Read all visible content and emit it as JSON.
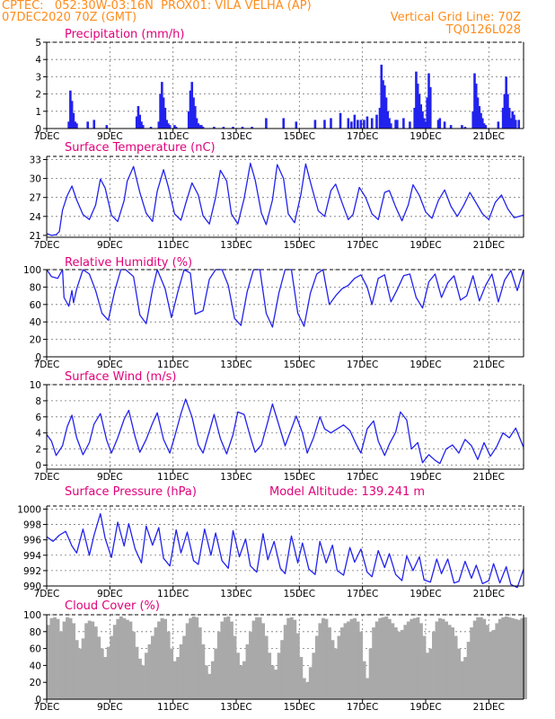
{
  "header": {
    "line1_left": "CPTEC:   052:30W-03:16N  PROX01: VILA VELHA (AP)",
    "line2_left": "07DEC2020 70Z (GMT)",
    "line2_right": "Vertical Grid Line: 70Z",
    "line3_right": "TQ0126L028"
  },
  "colors": {
    "header": "#ff8c1a",
    "title": "#e0007a",
    "series": "#2222ee",
    "cloud": "#a9a9a9"
  },
  "chart_data": [
    {
      "type": "bar",
      "title": "Precipitation (mm/h)",
      "ylim": [
        0,
        5
      ],
      "yticks": [
        0,
        1,
        2,
        3,
        4,
        5
      ],
      "xlim": [
        7,
        22.1
      ],
      "xticks": [
        7,
        9,
        11,
        13,
        15,
        17,
        19,
        21
      ],
      "xtick_labels": [
        "7DEC",
        "9DEC",
        "11DEC",
        "13DEC",
        "15DEC",
        "17DEC",
        "19DEC",
        "21DEC"
      ],
      "x": [
        7.7,
        7.75,
        7.8,
        7.85,
        7.9,
        7.95,
        8.3,
        8.5,
        8.9,
        9.85,
        9.9,
        9.95,
        10.0,
        10.05,
        10.3,
        10.55,
        10.6,
        10.65,
        10.7,
        10.75,
        10.8,
        10.85,
        10.9,
        11.05,
        11.1,
        11.5,
        11.55,
        11.6,
        11.65,
        11.7,
        11.75,
        11.8,
        11.85,
        11.9,
        11.95,
        12.3,
        12.6,
        12.9,
        13.2,
        13.5,
        13.95,
        14.5,
        14.9,
        15.5,
        15.8,
        16.0,
        16.3,
        16.55,
        16.65,
        16.75,
        16.85,
        16.95,
        17.05,
        17.15,
        17.3,
        17.45,
        17.55,
        17.6,
        17.65,
        17.7,
        17.75,
        17.8,
        17.85,
        17.9,
        18.05,
        18.1,
        18.3,
        18.5,
        18.65,
        18.7,
        18.75,
        18.8,
        18.85,
        18.9,
        18.95,
        19.0,
        19.05,
        19.1,
        19.15,
        19.4,
        19.45,
        19.6,
        19.8,
        20.15,
        20.25,
        20.5,
        20.55,
        20.6,
        20.65,
        20.7,
        20.75,
        20.8,
        20.85,
        20.9,
        21.3,
        21.45,
        21.5,
        21.55,
        21.6,
        21.65,
        21.7,
        21.75,
        21.8,
        21.85,
        21.95
      ],
      "values": [
        0.4,
        2.2,
        1.6,
        0.9,
        0.4,
        0.3,
        0.4,
        0.5,
        0.2,
        0.7,
        1.3,
        0.8,
        0.4,
        0.2,
        0.1,
        0.4,
        2.0,
        2.7,
        1.8,
        1.2,
        0.5,
        0.3,
        0.2,
        0.2,
        0.1,
        1.0,
        2.2,
        2.7,
        1.8,
        1.3,
        0.6,
        0.3,
        0.2,
        0.2,
        0.1,
        0.1,
        0.1,
        0.1,
        0.1,
        0.1,
        0.6,
        0.6,
        0.4,
        0.5,
        0.5,
        0.6,
        0.9,
        0.6,
        0.4,
        0.8,
        0.5,
        0.5,
        0.5,
        0.7,
        0.6,
        0.8,
        1.2,
        3.7,
        2.8,
        2.5,
        1.8,
        1.0,
        0.6,
        0.3,
        0.5,
        0.5,
        0.6,
        0.4,
        1.2,
        3.3,
        2.6,
        2.0,
        1.4,
        1.0,
        0.6,
        0.4,
        1.8,
        3.2,
        2.4,
        0.5,
        0.6,
        0.4,
        0.2,
        0.2,
        0.1,
        1.0,
        3.2,
        2.6,
        1.8,
        1.3,
        0.9,
        0.6,
        0.3,
        0.2,
        0.4,
        1.2,
        2.0,
        3.0,
        2.0,
        1.2,
        0.6,
        1.0,
        0.8,
        0.5,
        0.5
      ]
    },
    {
      "type": "line",
      "title": "Surface Temperature (nC)",
      "ylim": [
        20.7,
        33.5
      ],
      "yticks": [
        21,
        24,
        27,
        30,
        33
      ],
      "xlim": [
        7,
        22.1
      ],
      "xticks": [
        7,
        9,
        11,
        13,
        15,
        17,
        19,
        21
      ],
      "xtick_labels": [
        "7DEC",
        "9DEC",
        "11DEC",
        "13DEC",
        "15DEC",
        "17DEC",
        "19DEC",
        "21DEC"
      ],
      "x": [
        7.0,
        7.15,
        7.3,
        7.4,
        7.5,
        7.65,
        7.8,
        7.95,
        8.15,
        8.35,
        8.55,
        8.7,
        8.85,
        9.05,
        9.25,
        9.45,
        9.55,
        9.75,
        9.95,
        10.15,
        10.35,
        10.5,
        10.7,
        10.85,
        11.05,
        11.25,
        11.4,
        11.6,
        11.8,
        11.95,
        12.15,
        12.35,
        12.5,
        12.7,
        12.85,
        13.05,
        13.25,
        13.45,
        13.6,
        13.8,
        13.95,
        14.15,
        14.3,
        14.5,
        14.65,
        14.85,
        15.05,
        15.2,
        15.4,
        15.6,
        15.8,
        16.0,
        16.15,
        16.35,
        16.55,
        16.7,
        16.9,
        17.1,
        17.3,
        17.5,
        17.7,
        17.85,
        18.05,
        18.25,
        18.45,
        18.6,
        18.8,
        19.0,
        19.2,
        19.4,
        19.6,
        19.8,
        20.0,
        20.2,
        20.4,
        20.6,
        20.8,
        21.0,
        21.2,
        21.4,
        21.6,
        21.8,
        22.1
      ],
      "values": [
        21.3,
        21.0,
        21.1,
        21.6,
        25.0,
        27.3,
        28.8,
        26.6,
        24.3,
        23.5,
        25.8,
        29.9,
        28.5,
        24.2,
        23.2,
        26.5,
        29.6,
        31.9,
        27.8,
        24.5,
        23.2,
        28.0,
        31.4,
        28.7,
        24.4,
        23.4,
        26.0,
        29.3,
        27.4,
        24.1,
        22.8,
        27.0,
        31.3,
        29.6,
        24.4,
        22.8,
        26.8,
        32.4,
        29.8,
        24.5,
        22.7,
        26.6,
        32.2,
        30.0,
        24.4,
        23.0,
        27.5,
        32.3,
        28.5,
        24.9,
        24.0,
        28.1,
        29.1,
        26.2,
        23.5,
        24.3,
        28.6,
        27.0,
        24.4,
        23.5,
        27.8,
        28.1,
        25.5,
        23.3,
        25.8,
        29.0,
        27.3,
        24.7,
        23.7,
        26.5,
        28.2,
        25.6,
        24.0,
        25.7,
        27.8,
        26.1,
        24.4,
        23.5,
        26.2,
        27.4,
        25.2,
        23.8,
        24.2
      ]
    },
    {
      "type": "line",
      "title": "Relative Humidity (%)",
      "ylim": [
        0,
        100
      ],
      "yticks": [
        0,
        20,
        40,
        60,
        80,
        100
      ],
      "xlim": [
        7,
        22.1
      ],
      "xticks": [
        7,
        9,
        11,
        13,
        15,
        17,
        19,
        21
      ],
      "xtick_labels": [
        "7DEC",
        "9DEC",
        "11DEC",
        "13DEC",
        "15DEC",
        "17DEC",
        "19DEC",
        "21DEC"
      ],
      "x": [
        7.0,
        7.15,
        7.35,
        7.5,
        7.55,
        7.7,
        7.8,
        7.85,
        7.95,
        8.15,
        8.35,
        8.55,
        8.75,
        8.95,
        9.15,
        9.35,
        9.5,
        9.75,
        9.95,
        10.15,
        10.35,
        10.5,
        10.75,
        10.95,
        11.15,
        11.35,
        11.55,
        11.7,
        11.95,
        12.15,
        12.35,
        12.55,
        12.75,
        12.95,
        13.15,
        13.35,
        13.55,
        13.75,
        13.95,
        14.15,
        14.35,
        14.55,
        14.75,
        14.95,
        15.15,
        15.35,
        15.55,
        15.75,
        15.95,
        16.15,
        16.35,
        16.55,
        16.75,
        16.95,
        17.15,
        17.3,
        17.5,
        17.7,
        17.9,
        18.1,
        18.3,
        18.5,
        18.7,
        18.9,
        19.1,
        19.3,
        19.5,
        19.7,
        19.9,
        20.1,
        20.3,
        20.5,
        20.7,
        20.9,
        21.1,
        21.3,
        21.5,
        21.7,
        21.9,
        22.1
      ],
      "values": [
        100,
        92,
        90,
        100,
        68,
        58,
        76,
        62,
        78,
        100,
        95,
        76,
        50,
        42,
        75,
        100,
        100,
        92,
        48,
        38,
        77,
        100,
        78,
        45,
        74,
        100,
        96,
        49,
        53,
        89,
        100,
        100,
        82,
        44,
        36,
        75,
        100,
        100,
        50,
        34,
        73,
        100,
        100,
        50,
        35,
        73,
        95,
        100,
        60,
        70,
        78,
        82,
        90,
        94,
        80,
        60,
        90,
        94,
        63,
        77,
        93,
        95,
        68,
        56,
        86,
        95,
        68,
        85,
        93,
        65,
        70,
        93,
        64,
        82,
        95,
        63,
        88,
        99,
        76,
        100
      ]
    },
    {
      "type": "line",
      "title": "Surface Wind (m/s)",
      "ylim": [
        -0.5,
        10
      ],
      "yticks": [
        0,
        2,
        4,
        6,
        8,
        10
      ],
      "xlim": [
        7,
        22.1
      ],
      "xticks": [
        7,
        9,
        11,
        13,
        15,
        17,
        19,
        21
      ],
      "xtick_labels": [
        "7DEC",
        "9DEC",
        "11DEC",
        "13DEC",
        "15DEC",
        "17DEC",
        "19DEC",
        "21DEC"
      ],
      "x": [
        7.0,
        7.15,
        7.3,
        7.5,
        7.65,
        7.8,
        7.95,
        8.15,
        8.35,
        8.5,
        8.7,
        8.9,
        9.05,
        9.25,
        9.45,
        9.6,
        9.8,
        9.95,
        10.15,
        10.35,
        10.5,
        10.7,
        10.9,
        11.05,
        11.25,
        11.4,
        11.6,
        11.8,
        11.95,
        12.15,
        12.3,
        12.5,
        12.7,
        12.9,
        13.05,
        13.25,
        13.45,
        13.6,
        13.8,
        14.0,
        14.15,
        14.35,
        14.55,
        14.7,
        14.9,
        15.1,
        15.25,
        15.45,
        15.65,
        15.8,
        16.0,
        16.2,
        16.4,
        16.6,
        16.8,
        16.95,
        17.15,
        17.35,
        17.5,
        17.7,
        17.85,
        18.05,
        18.2,
        18.4,
        18.55,
        18.75,
        18.9,
        19.1,
        19.3,
        19.45,
        19.65,
        19.85,
        20.05,
        20.25,
        20.45,
        20.65,
        20.85,
        21.05,
        21.25,
        21.45,
        21.65,
        21.85,
        22.1
      ],
      "values": [
        3.8,
        3.0,
        1.2,
        2.4,
        4.8,
        6.2,
        3.4,
        1.3,
        2.8,
        5.1,
        6.4,
        3.1,
        1.5,
        3.4,
        5.7,
        6.8,
        3.5,
        1.6,
        3.2,
        5.2,
        6.5,
        3.2,
        1.5,
        3.5,
        6.4,
        8.2,
        6.0,
        2.5,
        1.5,
        4.2,
        6.3,
        3.3,
        1.4,
        3.8,
        6.6,
        6.3,
        3.5,
        1.6,
        2.5,
        5.4,
        7.6,
        5.0,
        2.4,
        4.0,
        6.1,
        4.0,
        1.5,
        3.4,
        6.0,
        4.5,
        4.0,
        4.5,
        5.0,
        4.3,
        2.6,
        1.5,
        4.5,
        5.5,
        3.0,
        1.2,
        2.6,
        4.1,
        6.6,
        5.6,
        2.0,
        2.8,
        0.3,
        1.3,
        0.6,
        0.2,
        2.0,
        2.5,
        1.5,
        3.2,
        2.4,
        0.7,
        2.8,
        1.1,
        2.3,
        4.0,
        3.4,
        4.6,
        2.2
      ]
    },
    {
      "type": "line",
      "title": "Surface Pressure (hPa)",
      "annotation": "Model Altitude: 139.241 m",
      "ylim": [
        990,
        1000.4
      ],
      "yticks": [
        990,
        992,
        994,
        996,
        998,
        1000
      ],
      "xlim": [
        7,
        22.1
      ],
      "xticks": [
        7,
        9,
        11,
        13,
        15,
        17,
        19,
        21
      ],
      "xtick_labels": [
        "7DEC",
        "9DEC",
        "11DEC",
        "13DEC",
        "15DEC",
        "17DEC",
        "19DEC",
        "21DEC"
      ],
      "x": [
        7.0,
        7.2,
        7.4,
        7.6,
        7.8,
        7.95,
        8.15,
        8.35,
        8.5,
        8.7,
        8.85,
        9.05,
        9.25,
        9.45,
        9.6,
        9.8,
        10.0,
        10.15,
        10.35,
        10.55,
        10.7,
        10.9,
        11.1,
        11.25,
        11.45,
        11.65,
        11.8,
        12.0,
        12.2,
        12.35,
        12.55,
        12.75,
        12.9,
        13.1,
        13.3,
        13.45,
        13.65,
        13.85,
        14.0,
        14.2,
        14.4,
        14.55,
        14.75,
        14.95,
        15.1,
        15.3,
        15.5,
        15.65,
        15.85,
        16.05,
        16.2,
        16.4,
        16.6,
        16.75,
        16.95,
        17.15,
        17.3,
        17.5,
        17.7,
        17.85,
        18.05,
        18.25,
        18.4,
        18.6,
        18.8,
        18.95,
        19.15,
        19.35,
        19.5,
        19.7,
        19.9,
        20.05,
        20.25,
        20.45,
        20.6,
        20.8,
        21.0,
        21.15,
        21.35,
        21.55,
        21.7,
        21.9,
        22.1
      ],
      "values": [
        996.4,
        995.8,
        996.6,
        997.1,
        995.2,
        994.3,
        997.4,
        994.0,
        996.6,
        999.4,
        996.2,
        993.7,
        998.3,
        995.2,
        998.1,
        994.8,
        993.0,
        997.8,
        995.3,
        997.6,
        993.6,
        992.6,
        997.3,
        994.3,
        997.0,
        993.3,
        992.8,
        997.4,
        994.0,
        996.9,
        993.3,
        992.3,
        997.2,
        993.8,
        996.1,
        992.6,
        991.8,
        996.8,
        993.4,
        995.8,
        992.3,
        991.6,
        996.5,
        993.0,
        995.6,
        992.2,
        991.5,
        995.8,
        993.0,
        995.3,
        992.0,
        991.4,
        995.0,
        993.1,
        994.8,
        991.8,
        991.2,
        994.6,
        992.4,
        994.2,
        991.5,
        990.7,
        993.9,
        992.0,
        993.8,
        990.8,
        990.5,
        993.5,
        991.6,
        993.5,
        990.4,
        990.6,
        993.2,
        991.0,
        992.7,
        990.3,
        990.7,
        992.9,
        990.4,
        992.5,
        990.2,
        989.8,
        992.2
      ]
    },
    {
      "type": "area",
      "title": "Cloud Cover (%)",
      "ylim": [
        0,
        100
      ],
      "yticks": [
        0,
        20,
        40,
        60,
        80,
        100
      ],
      "xlim": [
        7,
        22.1
      ],
      "xticks": [
        7,
        9,
        11,
        13,
        15,
        17,
        19,
        21
      ],
      "xtick_labels": [
        "7DEC",
        "9DEC",
        "11DEC",
        "13DEC",
        "15DEC",
        "17DEC",
        "19DEC",
        "21DEC"
      ],
      "x": [
        7.0,
        7.1,
        7.2,
        7.3,
        7.4,
        7.5,
        7.6,
        7.7,
        7.8,
        7.9,
        8.0,
        8.1,
        8.2,
        8.3,
        8.4,
        8.5,
        8.6,
        8.7,
        8.8,
        8.9,
        9.0,
        9.1,
        9.2,
        9.3,
        9.4,
        9.5,
        9.6,
        9.7,
        9.8,
        9.9,
        10.0,
        10.1,
        10.2,
        10.3,
        10.4,
        10.5,
        10.6,
        10.7,
        10.8,
        10.9,
        11.0,
        11.1,
        11.2,
        11.3,
        11.4,
        11.5,
        11.6,
        11.7,
        11.8,
        11.9,
        12.0,
        12.1,
        12.2,
        12.3,
        12.4,
        12.5,
        12.6,
        12.7,
        12.8,
        12.9,
        13.0,
        13.1,
        13.2,
        13.3,
        13.4,
        13.5,
        13.6,
        13.7,
        13.8,
        13.9,
        14.0,
        14.1,
        14.2,
        14.3,
        14.4,
        14.5,
        14.6,
        14.7,
        14.8,
        14.9,
        15.0,
        15.1,
        15.2,
        15.3,
        15.4,
        15.5,
        15.6,
        15.7,
        15.8,
        15.9,
        16.0,
        16.1,
        16.2,
        16.3,
        16.4,
        16.5,
        16.6,
        16.7,
        16.8,
        16.9,
        17.0,
        17.1,
        17.2,
        17.3,
        17.4,
        17.5,
        17.6,
        17.7,
        17.8,
        17.9,
        18.0,
        18.1,
        18.2,
        18.3,
        18.4,
        18.5,
        18.6,
        18.7,
        18.8,
        18.9,
        19.0,
        19.1,
        19.2,
        19.3,
        19.4,
        19.5,
        19.6,
        19.7,
        19.8,
        19.9,
        20.0,
        20.1,
        20.2,
        20.3,
        20.4,
        20.5,
        20.6,
        20.7,
        20.8,
        20.9,
        21.0,
        21.1,
        21.2,
        21.3,
        21.4,
        21.5,
        21.6,
        21.7,
        21.8,
        21.9,
        22.0,
        22.1
      ],
      "values": [
        88,
        96,
        97,
        95,
        80,
        92,
        97,
        96,
        90,
        70,
        60,
        72,
        90,
        93,
        92,
        86,
        74,
        60,
        50,
        62,
        75,
        88,
        95,
        98,
        96,
        94,
        92,
        80,
        62,
        48,
        40,
        55,
        65,
        75,
        85,
        92,
        96,
        95,
        80,
        60,
        45,
        50,
        65,
        75,
        90,
        96,
        98,
        97,
        85,
        65,
        40,
        30,
        45,
        60,
        80,
        92,
        97,
        98,
        92,
        75,
        55,
        40,
        45,
        65,
        80,
        93,
        97,
        97,
        90,
        75,
        55,
        40,
        35,
        55,
        70,
        88,
        96,
        97,
        94,
        78,
        50,
        25,
        20,
        38,
        55,
        75,
        90,
        96,
        95,
        85,
        70,
        60,
        75,
        85,
        90,
        92,
        95,
        96,
        92,
        80,
        45,
        25,
        60,
        85,
        92,
        96,
        97,
        98,
        95,
        90,
        85,
        80,
        82,
        88,
        92,
        95,
        96,
        97,
        90,
        75,
        55,
        60,
        80,
        92,
        96,
        95,
        92,
        88,
        85,
        75,
        60,
        45,
        50,
        68,
        85,
        93,
        97,
        97,
        95,
        88,
        80,
        82,
        90,
        95,
        97,
        98,
        97,
        96,
        95,
        94,
        96,
        97
      ]
    }
  ]
}
